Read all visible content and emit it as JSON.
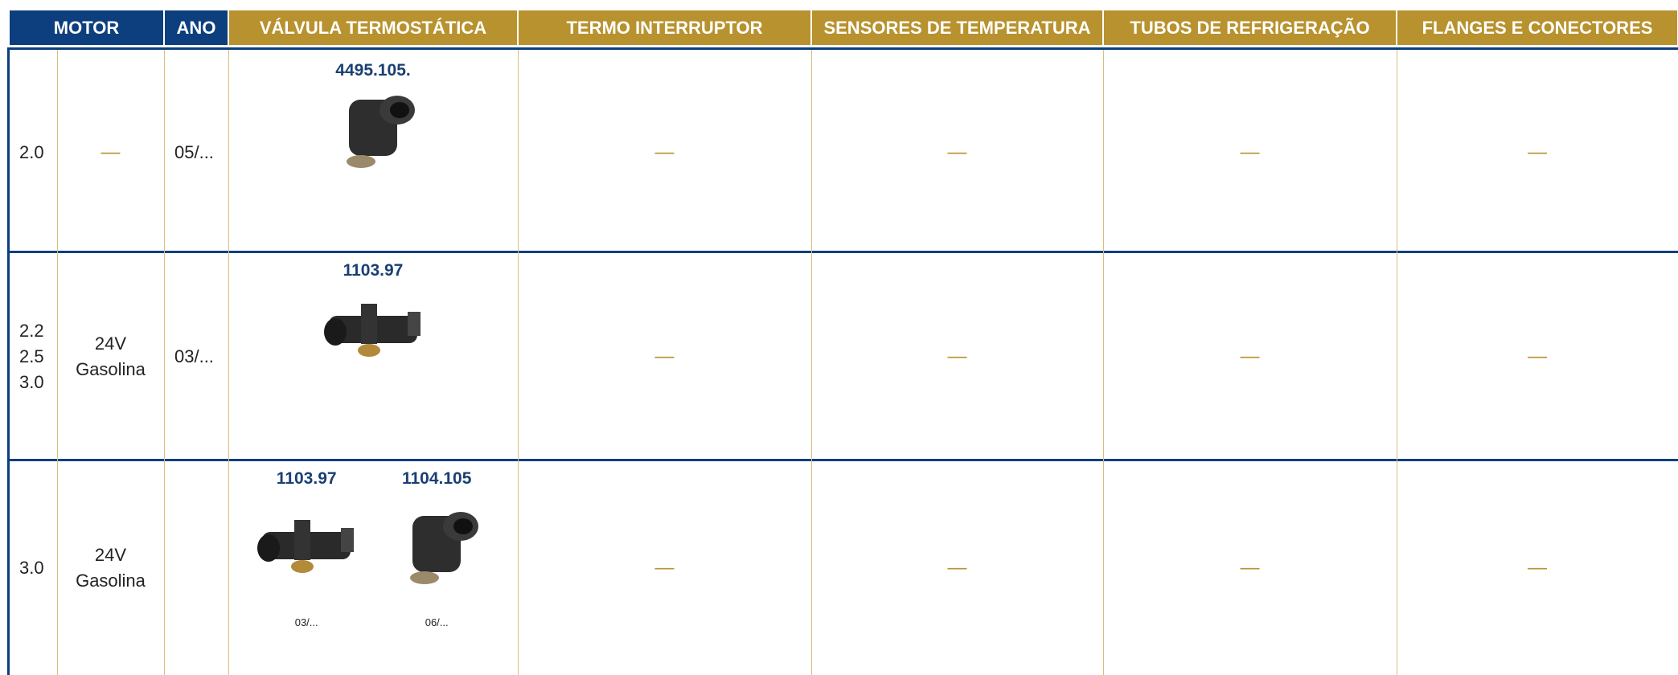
{
  "header": {
    "motor": "MOTOR",
    "ano": "ANO",
    "valvula": "VÁLVULA TERMOSTÁTICA",
    "termo": "TERMO INTERRUPTOR",
    "sensores": "SENSORES DE TEMPERATURA",
    "tubos": "TUBOS DE REFRIGERAÇÃO",
    "flanges": "FLANGES E CONECTORES"
  },
  "table": {
    "rows": [
      {
        "motor": [
          "2.0"
        ],
        "tipo": [
          "—"
        ],
        "ano": "05/...",
        "valvulas": [
          {
            "codigo": "4495.105."
          }
        ],
        "termo": "—",
        "sensores": "—",
        "tubos": "—",
        "flanges": "—"
      },
      {
        "motor": [
          "2.2",
          "2.5",
          "3.0"
        ],
        "tipo": [
          "24V",
          "Gasolina"
        ],
        "ano": "03/...",
        "valvulas": [
          {
            "codigo": "1103.97"
          }
        ],
        "termo": "—",
        "sensores": "—",
        "tubos": "—",
        "flanges": "—"
      },
      {
        "motor": [
          "3.0"
        ],
        "tipo": [
          "24V",
          "Gasolina"
        ],
        "valvulas": [
          {
            "codigo": "1103.97",
            "data": "03/..."
          },
          {
            "codigo": "1104.105",
            "data": "06/..."
          }
        ],
        "termo": "—",
        "sensores": "—",
        "tubos": "—",
        "flanges": "—"
      }
    ]
  }
}
